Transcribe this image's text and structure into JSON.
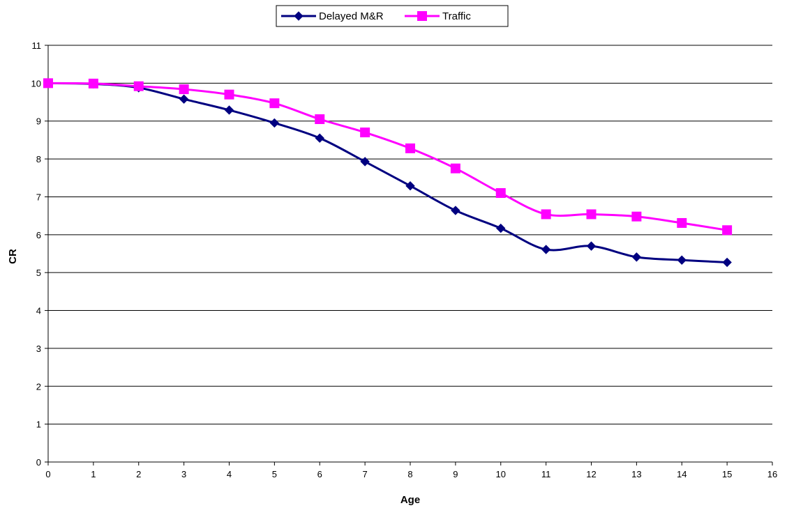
{
  "chart_data": {
    "type": "line",
    "xlabel": "Age",
    "ylabel": "CR",
    "xlim": [
      0,
      16
    ],
    "ylim": [
      0,
      11
    ],
    "x_ticks": [
      "0",
      "1",
      "2",
      "3",
      "4",
      "5",
      "6",
      "7",
      "8",
      "9",
      "10",
      "11",
      "12",
      "13",
      "14",
      "15",
      "16"
    ],
    "y_ticks": [
      "0",
      "1",
      "2",
      "3",
      "4",
      "5",
      "6",
      "7",
      "8",
      "9",
      "10",
      "11"
    ],
    "grid": "horizontal",
    "legend_position": "top-center",
    "x": [
      0,
      1,
      2,
      3,
      4,
      5,
      6,
      7,
      8,
      9,
      10,
      11,
      12,
      13,
      14,
      15
    ],
    "series": [
      {
        "name": "Delayed M&R",
        "color": "#000080",
        "marker": "diamond",
        "values": [
          10.0,
          9.98,
          9.88,
          9.58,
          9.29,
          8.95,
          8.55,
          7.93,
          7.29,
          6.64,
          6.17,
          5.61,
          5.7,
          5.41,
          5.33,
          5.27
        ]
      },
      {
        "name": "Traffic",
        "color": "#FF00FF",
        "marker": "square",
        "values": [
          10.0,
          9.99,
          9.92,
          9.84,
          9.7,
          9.47,
          9.05,
          8.7,
          8.28,
          7.75,
          7.1,
          6.54,
          6.54,
          6.48,
          6.31,
          6.12
        ]
      }
    ]
  }
}
